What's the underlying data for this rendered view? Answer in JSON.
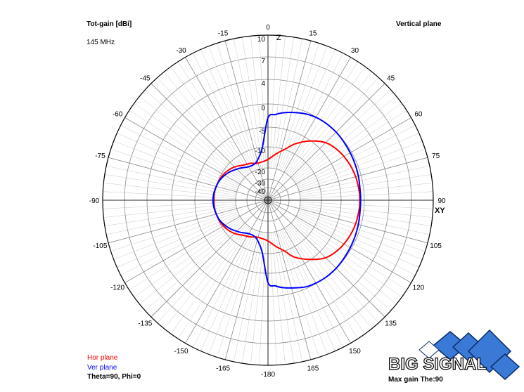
{
  "header": {
    "title": "Tot-gain [dBi]",
    "frequency": "145 MHz",
    "plane": "Vertical plane"
  },
  "footer": {
    "params": "Theta=90, Phi=0",
    "max_gain": "Max gain The:90"
  },
  "legend": [
    {
      "label": "Hor plane",
      "color": "#ff0000"
    },
    {
      "label": "Ver plane",
      "color": "#0000ff"
    }
  ],
  "logo": {
    "text": "BIG SIGNAL",
    "color": "#3a7ad6"
  },
  "chart_data": {
    "type": "polar",
    "title": "Tot-gain [dBi]",
    "radial_ticks": [
      "10",
      "7",
      "4",
      "0",
      "-5",
      "-10",
      "-20",
      "-30",
      "-40"
    ],
    "radial_values": [
      10,
      7,
      4,
      0,
      -5,
      -10,
      -20,
      -30,
      -40
    ],
    "angle_labels": [
      {
        "deg": 0,
        "label": "0"
      },
      {
        "deg": 15,
        "label": "15"
      },
      {
        "deg": 30,
        "label": "30"
      },
      {
        "deg": 45,
        "label": "45"
      },
      {
        "deg": 60,
        "label": "60"
      },
      {
        "deg": 75,
        "label": "75"
      },
      {
        "deg": 90,
        "label": "90"
      },
      {
        "deg": 105,
        "label": "105"
      },
      {
        "deg": 120,
        "label": "120"
      },
      {
        "deg": 135,
        "label": "135"
      },
      {
        "deg": 150,
        "label": "150"
      },
      {
        "deg": 165,
        "label": "165"
      },
      {
        "deg": 180,
        "label": "-180"
      },
      {
        "deg": 195,
        "label": "-165"
      },
      {
        "deg": 210,
        "label": "-150"
      },
      {
        "deg": 225,
        "label": "-135"
      },
      {
        "deg": 240,
        "label": "-120"
      },
      {
        "deg": 255,
        "label": "-105"
      },
      {
        "deg": 270,
        "label": "-90"
      },
      {
        "deg": 285,
        "label": "-75"
      },
      {
        "deg": 300,
        "label": "-60"
      },
      {
        "deg": 315,
        "label": "-45"
      },
      {
        "deg": 330,
        "label": "-30"
      },
      {
        "deg": 345,
        "label": "-15"
      }
    ],
    "axis_labels": {
      "top": "Z",
      "right": "XY"
    },
    "series": [
      {
        "name": "Hor plane",
        "color": "#ff0000",
        "angles": [
          0,
          10,
          18,
          26,
          35,
          45,
          55,
          65,
          75,
          85,
          90,
          95,
          105,
          115,
          125,
          135,
          145,
          155,
          162,
          170,
          180,
          190,
          198,
          206,
          215,
          225,
          235,
          245,
          255,
          262,
          270,
          278,
          285,
          295,
          305,
          315,
          325,
          335,
          342,
          350
        ],
        "values": [
          -16,
          -13,
          -10,
          -7.6,
          -5.2,
          -3.2,
          -2.2,
          -1.6,
          -1.2,
          -1.0,
          -1.0,
          -1.0,
          -1.2,
          -1.6,
          -2.2,
          -3.2,
          -5.2,
          -7.6,
          -10,
          -13,
          -16,
          -17,
          -17,
          -16,
          -15,
          -13,
          -11.5,
          -10.5,
          -10,
          -9.8,
          -9.8,
          -9.8,
          -10,
          -10.5,
          -11.5,
          -13,
          -15,
          -16,
          -17,
          -17
        ]
      },
      {
        "name": "Ver plane",
        "color": "#0000ff",
        "angles": [
          0,
          5,
          10,
          18,
          26,
          35,
          45,
          55,
          65,
          75,
          85,
          90,
          95,
          105,
          115,
          125,
          135,
          145,
          155,
          162,
          170,
          175,
          180,
          186,
          193,
          200,
          210,
          222,
          235,
          248,
          260,
          270,
          280,
          292,
          305,
          318,
          330,
          340,
          347,
          354
        ],
        "values": [
          -3.0,
          -2.2,
          -1.6,
          -0.9,
          -0.3,
          0.0,
          0.0,
          -0.2,
          -0.4,
          -0.6,
          -0.8,
          -0.8,
          -0.8,
          -0.6,
          -0.4,
          -0.2,
          0.0,
          0.0,
          -0.3,
          -0.9,
          -1.6,
          -2.2,
          -3.0,
          -10,
          -15,
          -17,
          -17,
          -15,
          -12.5,
          -10.5,
          -9.8,
          -9.6,
          -9.8,
          -10.5,
          -12.5,
          -15,
          -17,
          -17,
          -15,
          -10
        ]
      }
    ]
  }
}
